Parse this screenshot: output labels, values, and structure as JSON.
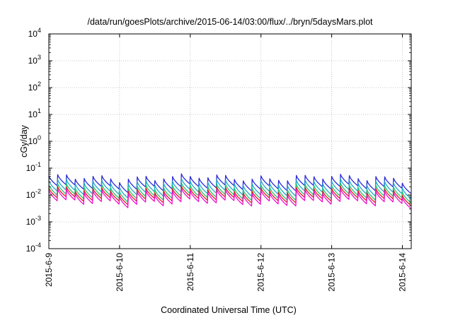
{
  "chart_data": {
    "type": "line",
    "title": "/data/run/goesPlots/archive/2015-06-14/03:00/flux/../bryn/5daysMars.plot",
    "xlabel": "Coordinated Universal Time (UTC)",
    "ylabel": "cGy/day",
    "y_scale": "log",
    "ylim": [
      0.0001,
      10000
    ],
    "xlim": [
      "2015-06-09T00:00",
      "2015-06-14T03:00"
    ],
    "grid": true,
    "legend": "none",
    "y_ticks": [
      {
        "value": 0.0001,
        "base": "10",
        "exp": "-4"
      },
      {
        "value": 0.001,
        "base": "10",
        "exp": "-3"
      },
      {
        "value": 0.01,
        "base": "10",
        "exp": "-2"
      },
      {
        "value": 0.1,
        "base": "10",
        "exp": "-1"
      },
      {
        "value": 1,
        "base": "10",
        "exp": "0"
      },
      {
        "value": 10,
        "base": "10",
        "exp": "1"
      },
      {
        "value": 100,
        "base": "10",
        "exp": "2"
      },
      {
        "value": 1000,
        "base": "10",
        "exp": "3"
      },
      {
        "value": 10000,
        "base": "10",
        "exp": "4"
      }
    ],
    "x_ticks": [
      "2015-6-9",
      "2015-6-10",
      "2015-6-11",
      "2015-6-12",
      "2015-6-13",
      "2015-6-14"
    ],
    "cycle_hours": 3,
    "series": [
      {
        "color": "#2a2ad8",
        "peak": 0.045,
        "trough": 0.019
      },
      {
        "color": "#20a8c8",
        "peak": 0.03,
        "trough": 0.012
      },
      {
        "color": "#20c870",
        "peak": 0.021,
        "trough": 0.0085
      },
      {
        "color": "#d82020",
        "peak": 0.016,
        "trough": 0.0068
      },
      {
        "color": "#ee10c8",
        "peak": 0.013,
        "trough": 0.0052
      }
    ]
  }
}
